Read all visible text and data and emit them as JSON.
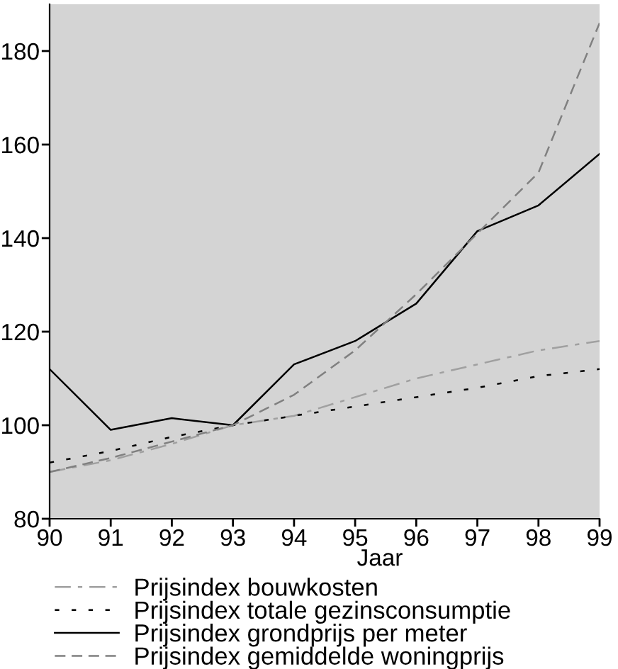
{
  "chart_data": {
    "type": "line",
    "xlabel": "Jaar",
    "x": [
      90,
      91,
      92,
      93,
      94,
      95,
      96,
      97,
      98,
      99
    ],
    "xlim": [
      90,
      99
    ],
    "xticks": [
      90,
      91,
      92,
      93,
      94,
      95,
      96,
      97,
      98,
      99
    ],
    "ylim": [
      80,
      190
    ],
    "yticks": [
      80,
      100,
      120,
      140,
      160,
      180
    ],
    "grid": false,
    "legend": "bottom",
    "marker": "none",
    "series": [
      {
        "name": "Prijsindex bouwkosten",
        "color": "#a0a0a0",
        "line_style": "dashdot",
        "values": [
          90,
          92.5,
          96,
          100,
          102,
          106,
          110,
          113,
          116,
          118
        ]
      },
      {
        "name": "Prijsindex totale gezinsconsumptie",
        "color": "#000000",
        "line_style": "dotted",
        "values": [
          92,
          94.5,
          97.5,
          100,
          102,
          104,
          106,
          108,
          110.5,
          112
        ]
      },
      {
        "name": "Prijsindex grondprijs per meter",
        "color": "#000000",
        "line_style": "solid",
        "values": [
          112,
          99,
          101.5,
          100,
          113,
          118,
          126,
          141.5,
          147,
          158
        ]
      },
      {
        "name": "Prijsindex gemiddelde woningprijs",
        "color": "#808080",
        "line_style": "dashed",
        "values": [
          90,
          93,
          96.5,
          100,
          106.5,
          116,
          128,
          141,
          154,
          186
        ]
      }
    ]
  }
}
